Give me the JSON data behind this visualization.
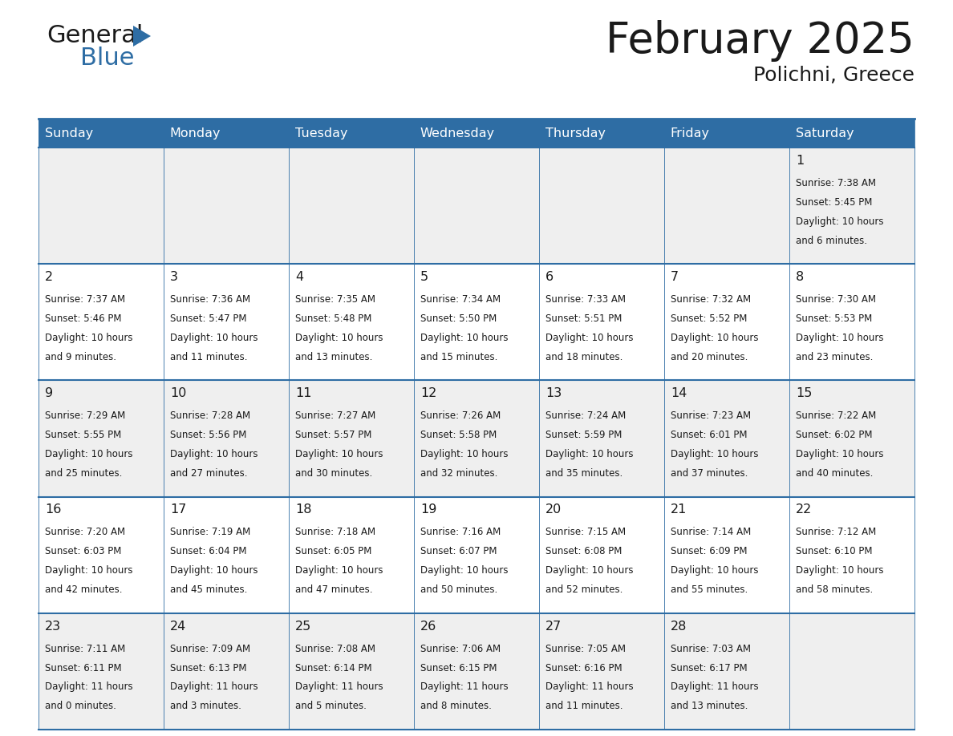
{
  "title": "February 2025",
  "subtitle": "Polichni, Greece",
  "header_bg": "#2E6DA4",
  "header_text_color": "#FFFFFF",
  "cell_bg_odd": "#EFEFEF",
  "cell_bg_even": "#FFFFFF",
  "border_color": "#2E6DA4",
  "text_color": "#1a1a1a",
  "day_names": [
    "Sunday",
    "Monday",
    "Tuesday",
    "Wednesday",
    "Thursday",
    "Friday",
    "Saturday"
  ],
  "days": [
    {
      "day": 1,
      "col": 6,
      "row": 0,
      "sunrise": "7:38 AM",
      "sunset": "5:45 PM",
      "daylight_h": "10 hours",
      "daylight_m": "and 6 minutes."
    },
    {
      "day": 2,
      "col": 0,
      "row": 1,
      "sunrise": "7:37 AM",
      "sunset": "5:46 PM",
      "daylight_h": "10 hours",
      "daylight_m": "and 9 minutes."
    },
    {
      "day": 3,
      "col": 1,
      "row": 1,
      "sunrise": "7:36 AM",
      "sunset": "5:47 PM",
      "daylight_h": "10 hours",
      "daylight_m": "and 11 minutes."
    },
    {
      "day": 4,
      "col": 2,
      "row": 1,
      "sunrise": "7:35 AM",
      "sunset": "5:48 PM",
      "daylight_h": "10 hours",
      "daylight_m": "and 13 minutes."
    },
    {
      "day": 5,
      "col": 3,
      "row": 1,
      "sunrise": "7:34 AM",
      "sunset": "5:50 PM",
      "daylight_h": "10 hours",
      "daylight_m": "and 15 minutes."
    },
    {
      "day": 6,
      "col": 4,
      "row": 1,
      "sunrise": "7:33 AM",
      "sunset": "5:51 PM",
      "daylight_h": "10 hours",
      "daylight_m": "and 18 minutes."
    },
    {
      "day": 7,
      "col": 5,
      "row": 1,
      "sunrise": "7:32 AM",
      "sunset": "5:52 PM",
      "daylight_h": "10 hours",
      "daylight_m": "and 20 minutes."
    },
    {
      "day": 8,
      "col": 6,
      "row": 1,
      "sunrise": "7:30 AM",
      "sunset": "5:53 PM",
      "daylight_h": "10 hours",
      "daylight_m": "and 23 minutes."
    },
    {
      "day": 9,
      "col": 0,
      "row": 2,
      "sunrise": "7:29 AM",
      "sunset": "5:55 PM",
      "daylight_h": "10 hours",
      "daylight_m": "and 25 minutes."
    },
    {
      "day": 10,
      "col": 1,
      "row": 2,
      "sunrise": "7:28 AM",
      "sunset": "5:56 PM",
      "daylight_h": "10 hours",
      "daylight_m": "and 27 minutes."
    },
    {
      "day": 11,
      "col": 2,
      "row": 2,
      "sunrise": "7:27 AM",
      "sunset": "5:57 PM",
      "daylight_h": "10 hours",
      "daylight_m": "and 30 minutes."
    },
    {
      "day": 12,
      "col": 3,
      "row": 2,
      "sunrise": "7:26 AM",
      "sunset": "5:58 PM",
      "daylight_h": "10 hours",
      "daylight_m": "and 32 minutes."
    },
    {
      "day": 13,
      "col": 4,
      "row": 2,
      "sunrise": "7:24 AM",
      "sunset": "5:59 PM",
      "daylight_h": "10 hours",
      "daylight_m": "and 35 minutes."
    },
    {
      "day": 14,
      "col": 5,
      "row": 2,
      "sunrise": "7:23 AM",
      "sunset": "6:01 PM",
      "daylight_h": "10 hours",
      "daylight_m": "and 37 minutes."
    },
    {
      "day": 15,
      "col": 6,
      "row": 2,
      "sunrise": "7:22 AM",
      "sunset": "6:02 PM",
      "daylight_h": "10 hours",
      "daylight_m": "and 40 minutes."
    },
    {
      "day": 16,
      "col": 0,
      "row": 3,
      "sunrise": "7:20 AM",
      "sunset": "6:03 PM",
      "daylight_h": "10 hours",
      "daylight_m": "and 42 minutes."
    },
    {
      "day": 17,
      "col": 1,
      "row": 3,
      "sunrise": "7:19 AM",
      "sunset": "6:04 PM",
      "daylight_h": "10 hours",
      "daylight_m": "and 45 minutes."
    },
    {
      "day": 18,
      "col": 2,
      "row": 3,
      "sunrise": "7:18 AM",
      "sunset": "6:05 PM",
      "daylight_h": "10 hours",
      "daylight_m": "and 47 minutes."
    },
    {
      "day": 19,
      "col": 3,
      "row": 3,
      "sunrise": "7:16 AM",
      "sunset": "6:07 PM",
      "daylight_h": "10 hours",
      "daylight_m": "and 50 minutes."
    },
    {
      "day": 20,
      "col": 4,
      "row": 3,
      "sunrise": "7:15 AM",
      "sunset": "6:08 PM",
      "daylight_h": "10 hours",
      "daylight_m": "and 52 minutes."
    },
    {
      "day": 21,
      "col": 5,
      "row": 3,
      "sunrise": "7:14 AM",
      "sunset": "6:09 PM",
      "daylight_h": "10 hours",
      "daylight_m": "and 55 minutes."
    },
    {
      "day": 22,
      "col": 6,
      "row": 3,
      "sunrise": "7:12 AM",
      "sunset": "6:10 PM",
      "daylight_h": "10 hours",
      "daylight_m": "and 58 minutes."
    },
    {
      "day": 23,
      "col": 0,
      "row": 4,
      "sunrise": "7:11 AM",
      "sunset": "6:11 PM",
      "daylight_h": "11 hours",
      "daylight_m": "and 0 minutes."
    },
    {
      "day": 24,
      "col": 1,
      "row": 4,
      "sunrise": "7:09 AM",
      "sunset": "6:13 PM",
      "daylight_h": "11 hours",
      "daylight_m": "and 3 minutes."
    },
    {
      "day": 25,
      "col": 2,
      "row": 4,
      "sunrise": "7:08 AM",
      "sunset": "6:14 PM",
      "daylight_h": "11 hours",
      "daylight_m": "and 5 minutes."
    },
    {
      "day": 26,
      "col": 3,
      "row": 4,
      "sunrise": "7:06 AM",
      "sunset": "6:15 PM",
      "daylight_h": "11 hours",
      "daylight_m": "and 8 minutes."
    },
    {
      "day": 27,
      "col": 4,
      "row": 4,
      "sunrise": "7:05 AM",
      "sunset": "6:16 PM",
      "daylight_h": "11 hours",
      "daylight_m": "and 11 minutes."
    },
    {
      "day": 28,
      "col": 5,
      "row": 4,
      "sunrise": "7:03 AM",
      "sunset": "6:17 PM",
      "daylight_h": "11 hours",
      "daylight_m": "and 13 minutes."
    }
  ],
  "num_rows": 5,
  "num_cols": 7
}
